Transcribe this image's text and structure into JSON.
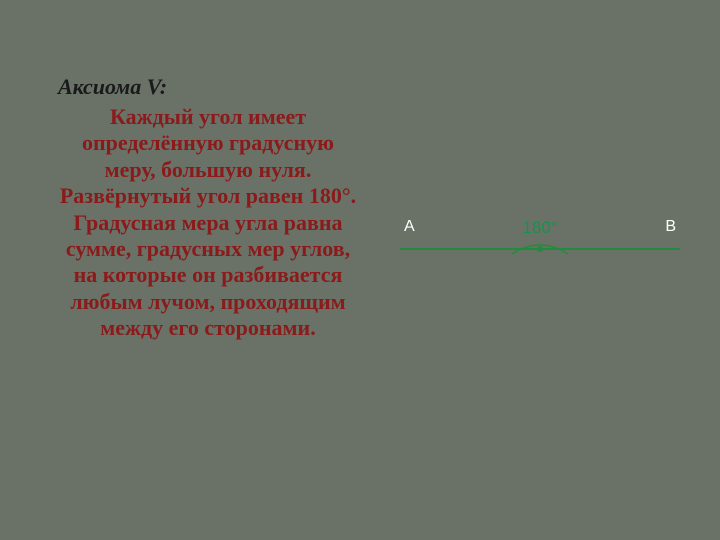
{
  "text": {
    "title": "Аксиома V:",
    "body": "Каждый угол имеет определённую градусную меру, большую нуля. Развёрнутый угол равен 180°. Градусная мера угла равна сумме, градусных мер углов, на которые он разбивается любым лучом, проходящим между его сторонами."
  },
  "diagram": {
    "type": "line-angle",
    "label_left": "А",
    "label_angle": "180°",
    "label_right": "В",
    "line_color": "#228b3d",
    "line_width": 2,
    "line_length": 280,
    "point_color": "#228b3d",
    "point_radius": 3,
    "arc_color": "#228b3d",
    "arc_width": 60,
    "arc_height": 16,
    "label_color_endpoints": "#ffffff",
    "label_color_angle": "#1a9050",
    "label_fontsize": 16
  },
  "colors": {
    "background": "#6a7268",
    "title_color": "#1a1a1a",
    "body_color": "#8b1a1a"
  },
  "typography": {
    "title_fontsize": 22,
    "body_fontsize": 22,
    "font_family": "Georgia, serif",
    "font_weight": "bold",
    "font_style_title": "italic"
  }
}
